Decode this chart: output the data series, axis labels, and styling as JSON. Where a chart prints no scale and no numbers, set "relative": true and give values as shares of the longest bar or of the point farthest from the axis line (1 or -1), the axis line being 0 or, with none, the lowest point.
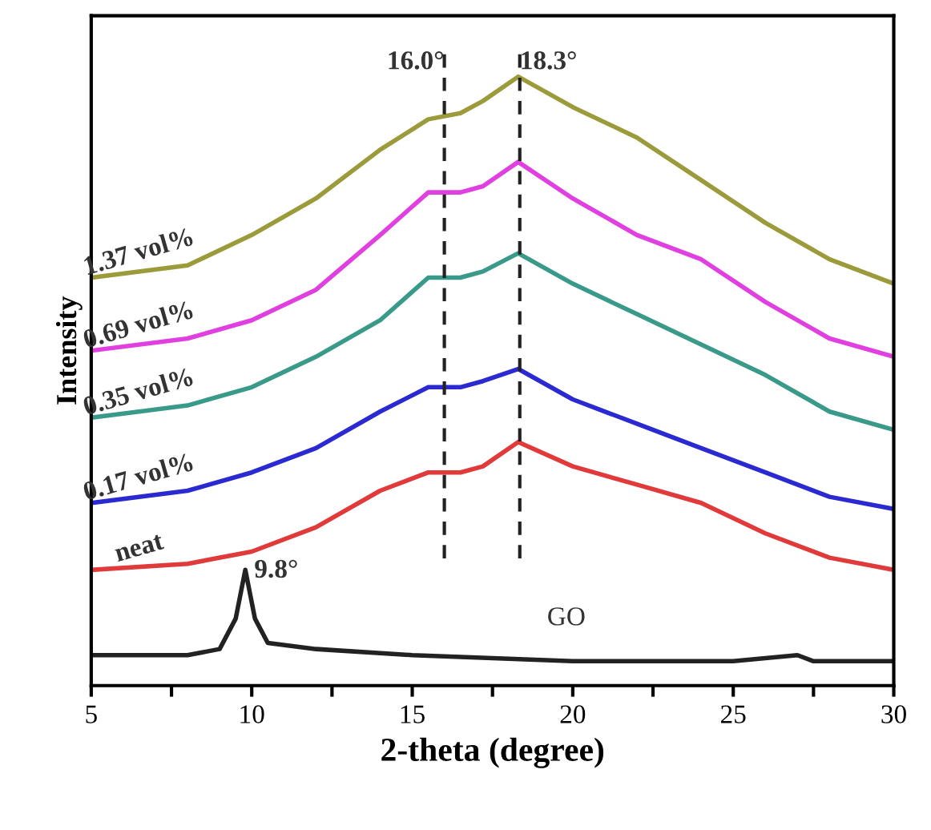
{
  "chart_data": {
    "type": "line",
    "relative": true,
    "xlabel": "2-theta (degree)",
    "ylabel": "Intensity",
    "xlim": [
      5,
      30
    ],
    "xticks": [
      5,
      {
        "value": 7.5,
        "label": null
      },
      10,
      {
        "value": 12.5,
        "label": null
      },
      15,
      {
        "value": 17.5,
        "label": null
      },
      20,
      {
        "value": 22.5,
        "label": null
      },
      25,
      {
        "value": 27.5,
        "label": null
      },
      30
    ],
    "tick_labels": "x",
    "grid": false,
    "legend": false,
    "marker": "none",
    "line_style": "solid",
    "ref_lines": [
      {
        "axis": "x",
        "value": 16.0,
        "label": "16.0°",
        "line_style": "dashed",
        "color": "#222222"
      },
      {
        "axis": "x",
        "value": 18.35,
        "label": "18.3°",
        "line_style": "dashed",
        "color": "#222222"
      }
    ],
    "annotations": [
      {
        "text": "9.8°",
        "x": 9.8,
        "y": 0.19
      }
    ],
    "series": [
      {
        "name": "GO",
        "color": "#222222",
        "x": [
          5,
          8,
          9,
          9.5,
          9.8,
          10.1,
          10.5,
          12,
          15,
          20,
          25,
          27,
          27.5,
          30
        ],
        "values": [
          0.05,
          0.05,
          0.06,
          0.11,
          0.19,
          0.11,
          0.07,
          0.06,
          0.05,
          0.04,
          0.04,
          0.05,
          0.04,
          0.04
        ]
      },
      {
        "name": "neat",
        "color": "#e03a3a",
        "x": [
          5,
          8,
          10,
          12,
          14,
          15.5,
          16.5,
          17.2,
          18.3,
          20,
          22,
          24,
          26,
          28,
          30
        ],
        "values": [
          0.19,
          0.2,
          0.22,
          0.26,
          0.32,
          0.35,
          0.35,
          0.36,
          0.4,
          0.36,
          0.33,
          0.3,
          0.25,
          0.21,
          0.19
        ]
      },
      {
        "name": "0.17 vol%",
        "color": "#2a2ad0",
        "x": [
          5,
          8,
          10,
          12,
          14,
          15.5,
          16.5,
          17.2,
          18.3,
          20,
          22,
          24,
          26,
          28,
          30
        ],
        "values": [
          0.3,
          0.32,
          0.35,
          0.39,
          0.45,
          0.49,
          0.49,
          0.5,
          0.52,
          0.47,
          0.43,
          0.39,
          0.35,
          0.31,
          0.29
        ]
      },
      {
        "name": "0.35 vol%",
        "color": "#3a9a8a",
        "x": [
          5,
          8,
          10,
          12,
          14,
          15.5,
          16.5,
          17.2,
          18.3,
          20,
          22,
          24,
          26,
          28,
          30
        ],
        "values": [
          0.44,
          0.46,
          0.49,
          0.54,
          0.6,
          0.67,
          0.67,
          0.68,
          0.71,
          0.66,
          0.61,
          0.56,
          0.51,
          0.45,
          0.42
        ]
      },
      {
        "name": "0.69 vol%",
        "color": "#e040e0",
        "x": [
          5,
          8,
          10,
          12,
          14,
          15.5,
          16.5,
          17.2,
          18.3,
          20,
          22,
          24,
          26,
          28,
          30
        ],
        "values": [
          0.55,
          0.57,
          0.6,
          0.65,
          0.74,
          0.81,
          0.81,
          0.82,
          0.86,
          0.8,
          0.74,
          0.7,
          0.63,
          0.57,
          0.54
        ]
      },
      {
        "name": "1.37 vol%",
        "color": "#9b9b3b",
        "x": [
          5,
          8,
          10,
          12,
          14,
          15.5,
          16.5,
          17.2,
          18.3,
          20,
          22,
          24,
          26,
          28,
          30
        ],
        "values": [
          0.67,
          0.69,
          0.74,
          0.8,
          0.88,
          0.93,
          0.94,
          0.96,
          1.0,
          0.95,
          0.9,
          0.83,
          0.76,
          0.7,
          0.66
        ]
      }
    ]
  }
}
